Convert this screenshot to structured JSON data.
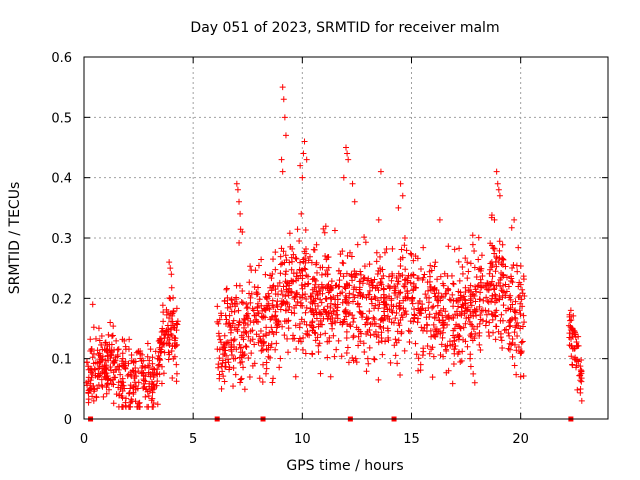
{
  "chart_data": {
    "type": "scatter",
    "title": "Day 051 of 2023, SRMTID for receiver malm",
    "xlabel": "GPS time / hours",
    "ylabel": "SRMTID / TECUs",
    "xlim": [
      0,
      24
    ],
    "ylim": [
      0,
      0.6
    ],
    "x_ticks": [
      0,
      5,
      10,
      15,
      20
    ],
    "y_ticks": [
      0,
      0.1,
      0.2,
      0.3,
      0.4,
      0.5,
      0.6
    ],
    "x_tick_labels": [
      "0",
      "5",
      "10",
      "15",
      "20"
    ],
    "y_tick_labels": [
      "0",
      "0.1",
      "0.2",
      "0.3",
      "0.4",
      "0.5",
      "0.6"
    ],
    "grid": true,
    "marker": "plus",
    "color": "#ff0000",
    "series": [
      {
        "name": "SRMTID",
        "segments": [
          {
            "x_start": 0.1,
            "x_end": 4.3,
            "median": [
              [
                0.1,
                0.07
              ],
              [
                0.5,
                0.09
              ],
              [
                1.0,
                0.085
              ],
              [
                1.5,
                0.08
              ],
              [
                2.0,
                0.07
              ],
              [
                2.5,
                0.065
              ],
              [
                3.0,
                0.055
              ],
              [
                3.3,
                0.07
              ],
              [
                3.6,
                0.12
              ],
              [
                3.9,
                0.16
              ],
              [
                4.3,
                0.13
              ]
            ],
            "spread": 0.03,
            "max_value": 0.26
          },
          {
            "x_start": 6.1,
            "x_end": 20.2,
            "median": [
              [
                6.1,
                0.12
              ],
              [
                6.5,
                0.13
              ],
              [
                7.0,
                0.14
              ],
              [
                7.5,
                0.15
              ],
              [
                8.0,
                0.16
              ],
              [
                8.5,
                0.17
              ],
              [
                9.0,
                0.2
              ],
              [
                9.5,
                0.21
              ],
              [
                10.0,
                0.2
              ],
              [
                10.5,
                0.18
              ],
              [
                11.0,
                0.19
              ],
              [
                12.0,
                0.2
              ],
              [
                13.0,
                0.19
              ],
              [
                14.0,
                0.19
              ],
              [
                15.0,
                0.2
              ],
              [
                16.0,
                0.17
              ],
              [
                17.0,
                0.17
              ],
              [
                18.0,
                0.2
              ],
              [
                19.0,
                0.21
              ],
              [
                20.0,
                0.17
              ],
              [
                20.2,
                0.16
              ]
            ],
            "spread": 0.045,
            "max_value": 0.55
          },
          {
            "x_start": 22.2,
            "x_end": 22.8,
            "median": [
              [
                22.2,
                0.15
              ],
              [
                22.5,
                0.12
              ],
              [
                22.8,
                0.07
              ]
            ],
            "spread": 0.025,
            "max_value": 0.18
          }
        ],
        "peaks": [
          {
            "x": 9.1,
            "y": 0.55
          },
          {
            "x": 9.15,
            "y": 0.53
          },
          {
            "x": 9.2,
            "y": 0.5
          },
          {
            "x": 9.25,
            "y": 0.47
          },
          {
            "x": 9.05,
            "y": 0.43
          },
          {
            "x": 9.1,
            "y": 0.41
          },
          {
            "x": 9.9,
            "y": 0.42
          },
          {
            "x": 10.1,
            "y": 0.46
          },
          {
            "x": 10.05,
            "y": 0.44
          },
          {
            "x": 10.2,
            "y": 0.43
          },
          {
            "x": 10.0,
            "y": 0.4
          },
          {
            "x": 9.95,
            "y": 0.34
          },
          {
            "x": 12.0,
            "y": 0.45
          },
          {
            "x": 12.05,
            "y": 0.44
          },
          {
            "x": 12.1,
            "y": 0.43
          },
          {
            "x": 11.9,
            "y": 0.4
          },
          {
            "x": 12.3,
            "y": 0.39
          },
          {
            "x": 12.4,
            "y": 0.36
          },
          {
            "x": 13.6,
            "y": 0.41
          },
          {
            "x": 13.5,
            "y": 0.33
          },
          {
            "x": 14.5,
            "y": 0.39
          },
          {
            "x": 14.6,
            "y": 0.37
          },
          {
            "x": 14.4,
            "y": 0.35
          },
          {
            "x": 14.7,
            "y": 0.3
          },
          {
            "x": 18.9,
            "y": 0.41
          },
          {
            "x": 18.95,
            "y": 0.39
          },
          {
            "x": 19.0,
            "y": 0.38
          },
          {
            "x": 19.05,
            "y": 0.37
          },
          {
            "x": 18.8,
            "y": 0.33
          },
          {
            "x": 7.0,
            "y": 0.39
          },
          {
            "x": 7.05,
            "y": 0.38
          },
          {
            "x": 7.1,
            "y": 0.36
          },
          {
            "x": 7.15,
            "y": 0.34
          },
          {
            "x": 7.25,
            "y": 0.31
          },
          {
            "x": 16.3,
            "y": 0.33
          },
          {
            "x": 19.7,
            "y": 0.33
          },
          {
            "x": 3.9,
            "y": 0.26
          },
          {
            "x": 3.95,
            "y": 0.25
          },
          {
            "x": 4.0,
            "y": 0.24
          },
          {
            "x": 0.4,
            "y": 0.19
          },
          {
            "x": 1.2,
            "y": 0.16
          },
          {
            "x": 22.3,
            "y": 0.18
          },
          {
            "x": 22.5,
            "y": 0.14
          },
          {
            "x": 22.8,
            "y": 0.03
          },
          {
            "x": 0.45,
            "y": 0.03
          },
          {
            "x": 2.1,
            "y": 0.02
          },
          {
            "x": 6.3,
            "y": 0.05
          },
          {
            "x": 8.2,
            "y": 0.09
          },
          {
            "x": 9.7,
            "y": 0.07
          },
          {
            "x": 11.3,
            "y": 0.07
          },
          {
            "x": 15.3,
            "y": 0.08
          },
          {
            "x": 17.9,
            "y": 0.06
          },
          {
            "x": 20.0,
            "y": 0.07
          },
          {
            "x": 13.0,
            "y": 0.1
          },
          {
            "x": 16.7,
            "y": 0.08
          }
        ]
      }
    ],
    "gap_markers_x": [
      0.3,
      6.1,
      8.2,
      12.2,
      14.2,
      22.3
    ]
  }
}
